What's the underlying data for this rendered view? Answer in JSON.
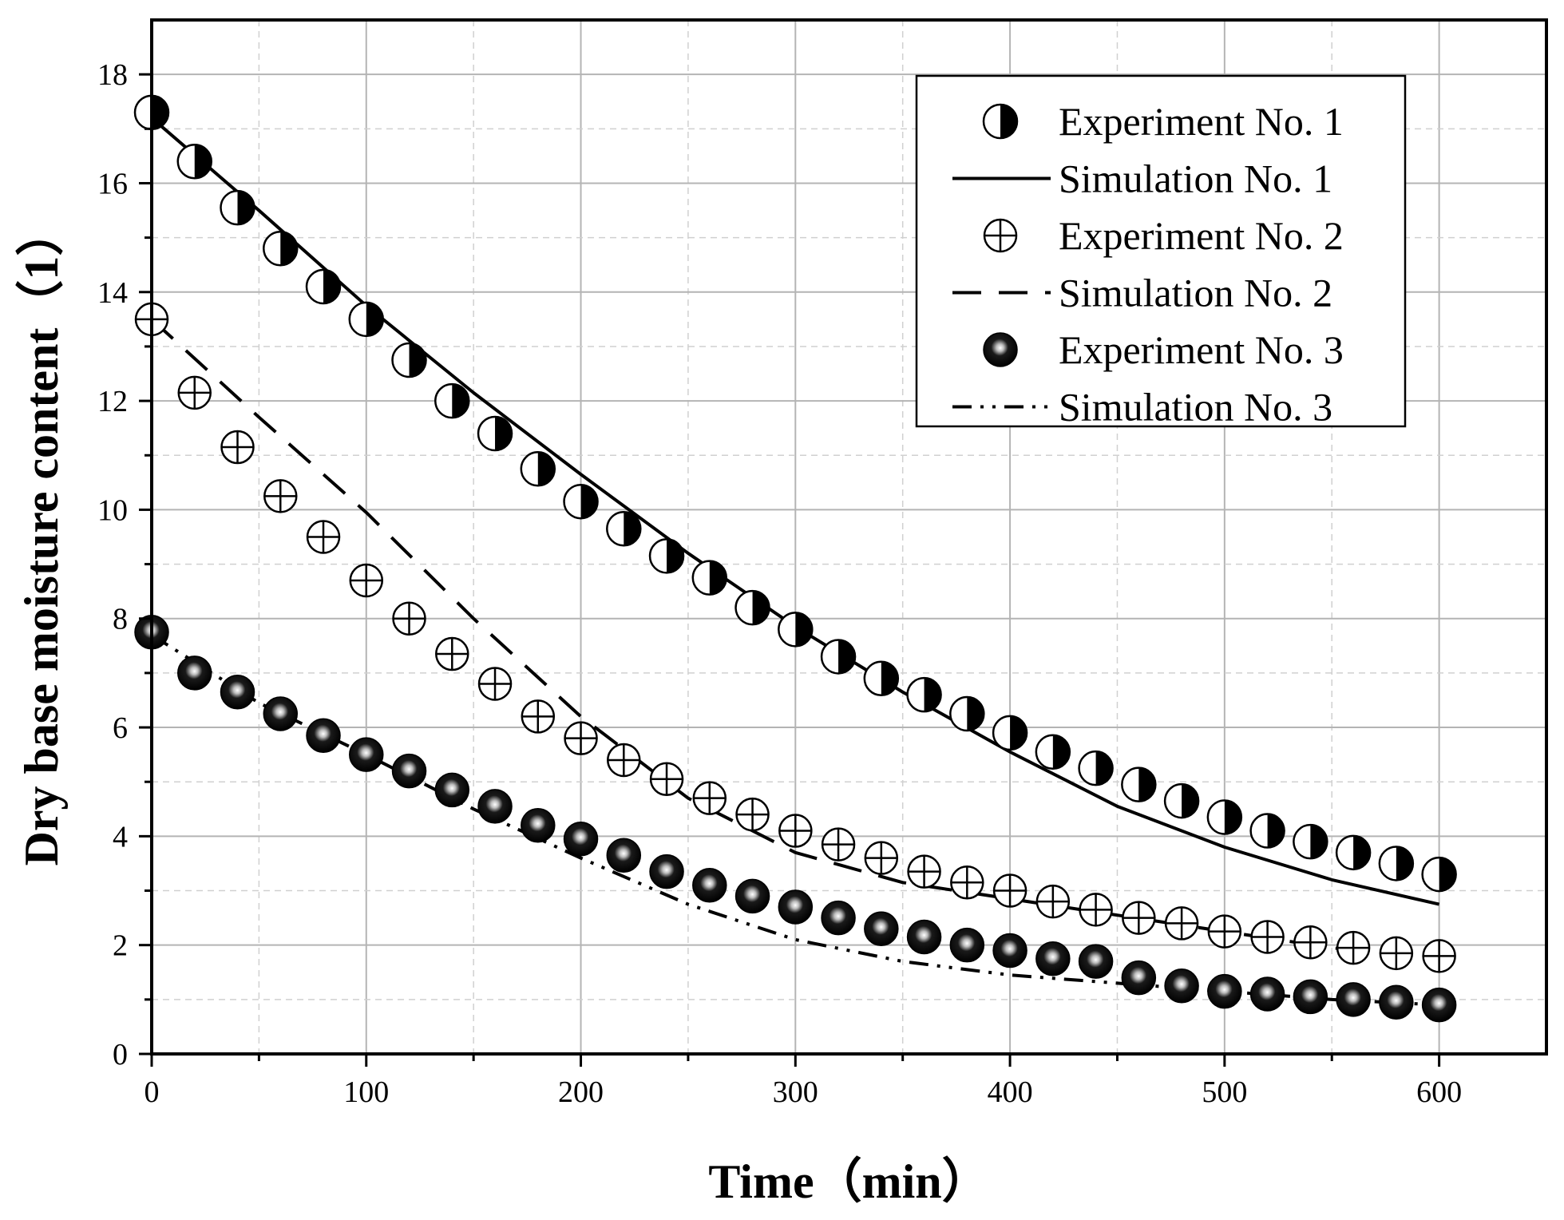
{
  "chart_data": {
    "type": "scatter",
    "title": "",
    "xlabel": "Time（min）",
    "ylabel": "Dry base moisture content（1）",
    "xlim": [
      0,
      650
    ],
    "ylim": [
      0,
      19
    ],
    "xticks": [
      0,
      100,
      200,
      300,
      400,
      500,
      600
    ],
    "yticks": [
      0,
      2,
      4,
      6,
      8,
      10,
      12,
      14,
      16,
      18
    ],
    "grid": true,
    "legend_position": "top-right",
    "experiment_x": [
      0,
      20,
      40,
      60,
      80,
      100,
      120,
      140,
      160,
      180,
      200,
      220,
      240,
      260,
      280,
      300,
      320,
      340,
      360,
      380,
      400,
      420,
      440,
      460,
      480,
      500,
      520,
      540,
      560,
      580,
      600
    ],
    "simulation_x": [
      0,
      50,
      100,
      150,
      200,
      250,
      300,
      350,
      400,
      450,
      500,
      550,
      600
    ],
    "series": [
      {
        "name": "Experiment No. 1",
        "kind": "marker",
        "marker": "half-filled-circle",
        "values": [
          17.3,
          16.4,
          15.55,
          14.8,
          14.1,
          13.5,
          12.75,
          12.0,
          11.4,
          10.75,
          10.15,
          9.65,
          9.15,
          8.75,
          8.2,
          7.8,
          7.3,
          6.9,
          6.6,
          6.25,
          5.9,
          5.55,
          5.25,
          4.95,
          4.65,
          4.35,
          4.1,
          3.9,
          3.7,
          3.5,
          3.3
        ]
      },
      {
        "name": "Simulation No. 1",
        "kind": "line",
        "dash": "solid",
        "values": [
          17.2,
          15.5,
          13.75,
          12.15,
          10.65,
          9.2,
          7.85,
          6.65,
          5.55,
          4.55,
          3.8,
          3.2,
          2.75
        ]
      },
      {
        "name": "Experiment No. 2",
        "kind": "marker",
        "marker": "circle-plus",
        "values": [
          13.5,
          12.15,
          11.15,
          10.25,
          9.5,
          8.7,
          8.0,
          7.35,
          6.8,
          6.2,
          5.8,
          5.4,
          5.05,
          4.7,
          4.4,
          4.1,
          3.85,
          3.6,
          3.35,
          3.15,
          3.0,
          2.8,
          2.65,
          2.5,
          2.4,
          2.25,
          2.15,
          2.05,
          1.95,
          1.85,
          1.8
        ]
      },
      {
        "name": "Simulation No. 2",
        "kind": "line",
        "dash": "dash",
        "values": [
          13.5,
          11.7,
          9.95,
          8.0,
          6.2,
          4.7,
          3.7,
          3.15,
          2.85,
          2.55,
          2.25,
          1.95,
          1.75
        ]
      },
      {
        "name": "Experiment No. 3",
        "kind": "marker",
        "marker": "shaded-sphere",
        "values": [
          7.75,
          7.0,
          6.65,
          6.25,
          5.85,
          5.5,
          5.2,
          4.85,
          4.55,
          4.2,
          3.95,
          3.65,
          3.35,
          3.1,
          2.9,
          2.7,
          2.5,
          2.3,
          2.15,
          2.0,
          1.9,
          1.75,
          1.7,
          1.4,
          1.25,
          1.15,
          1.1,
          1.05,
          1.0,
          0.95,
          0.9
        ]
      },
      {
        "name": "Simulation No. 3",
        "kind": "line",
        "dash": "dash-dot-dot",
        "values": [
          7.7,
          6.45,
          5.5,
          4.5,
          3.6,
          2.75,
          2.1,
          1.7,
          1.45,
          1.3,
          1.15,
          1.0,
          0.9
        ]
      }
    ]
  }
}
